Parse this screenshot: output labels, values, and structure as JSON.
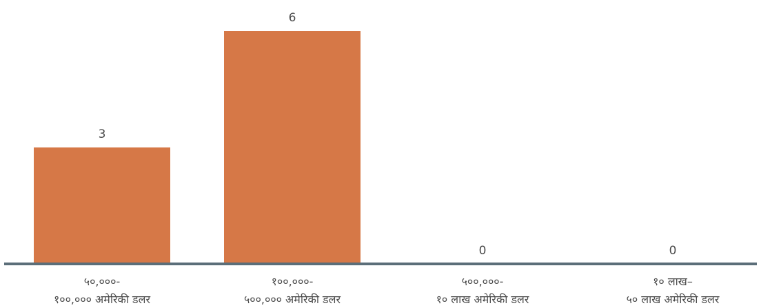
{
  "chart_data": {
    "type": "bar",
    "categories": [
      [
        "५०,०००-",
        "१००,००० अमेरिकी डलर"
      ],
      [
        "१००,०००-",
        "५००,००० अमेरिकी डलर"
      ],
      [
        "५००,०००-",
        "१० लाख अमेरिकी डलर"
      ],
      [
        "१० लाख–",
        "५० लाख अमेरिकी डलर"
      ]
    ],
    "values": [
      3,
      6,
      0,
      0
    ],
    "data_labels": [
      "3",
      "6",
      "0",
      "0"
    ],
    "ylim": [
      0,
      6
    ],
    "grid": false,
    "legend": "none",
    "colors": {
      "bar": "#d67847",
      "axis": "#5b6e79",
      "text": "#4a4a4a"
    }
  }
}
